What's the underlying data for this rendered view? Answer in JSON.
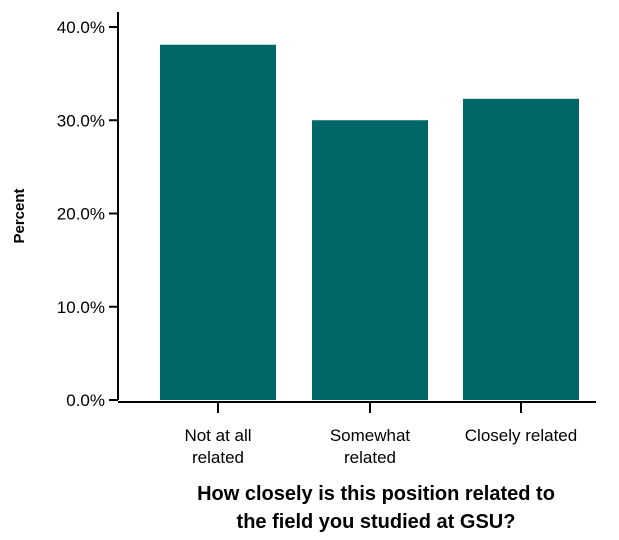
{
  "chart_data": {
    "type": "bar",
    "categories": [
      [
        "Not at all",
        "related"
      ],
      [
        "Somewhat",
        "related"
      ],
      [
        "Closely related"
      ]
    ],
    "series": [
      {
        "values": [
          38.1,
          30.0,
          32.3
        ]
      }
    ],
    "ylabel": "Percent",
    "xlabel": [
      "How closely is this position related to",
      "the field you studied at GSU?"
    ],
    "yticks": [
      0,
      10,
      20,
      30,
      40
    ],
    "ytick_labels": [
      "0.0%",
      "10.0%",
      "20.0%",
      "30.0%",
      "40.0%"
    ],
    "ylim": [
      0,
      40
    ],
    "bar_color": "#006666",
    "grid": false,
    "legend": "none"
  }
}
